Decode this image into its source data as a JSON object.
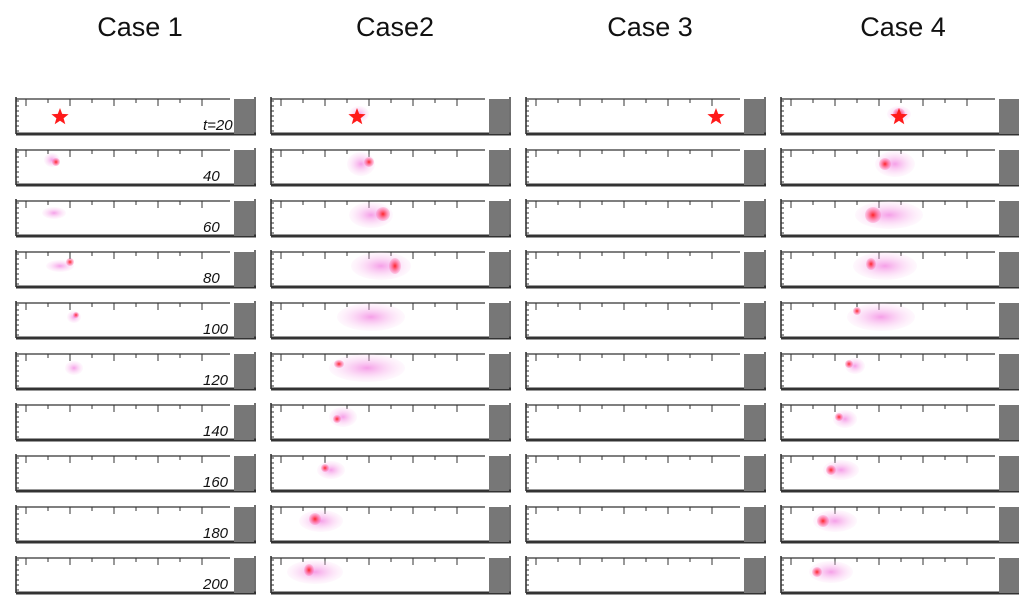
{
  "columns": [
    {
      "title": "Case 1"
    },
    {
      "title": "Case2"
    },
    {
      "title": "Case 3"
    },
    {
      "title": "Case 4"
    }
  ],
  "time_labels": [
    "t=20",
    "40",
    "60",
    "80",
    "100",
    "120",
    "140",
    "160",
    "180",
    "200"
  ],
  "colors": {
    "frame": "#333333",
    "bar": "#777777",
    "star": "#ff1a1a",
    "cloud_light": "#f7b6ea",
    "cloud_dark": "#ff2222"
  }
}
